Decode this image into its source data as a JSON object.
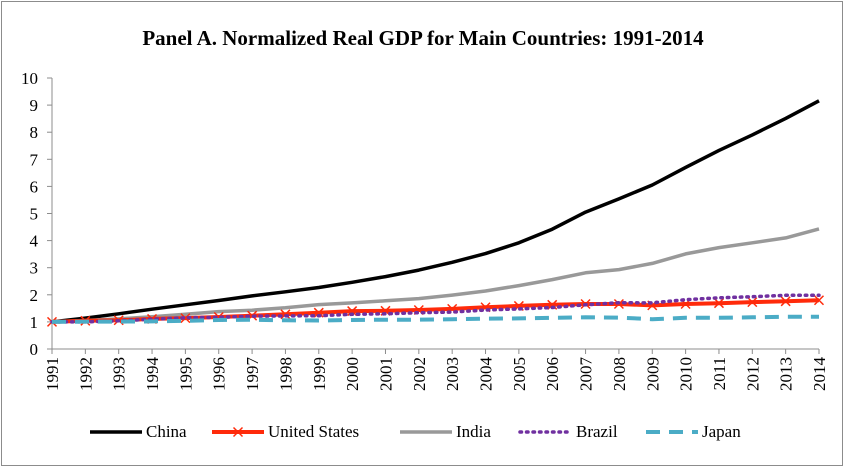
{
  "chart_data": {
    "type": "line",
    "title": "Panel A. Normalized Real GDP for Main Countries: 1991-2014",
    "xlabel": "",
    "ylabel": "",
    "ylim": [
      0,
      10
    ],
    "yticks": [
      "0",
      "1",
      "2",
      "3",
      "4",
      "5",
      "6",
      "7",
      "8",
      "9",
      "10"
    ],
    "grid": false,
    "legend_position": "bottom",
    "x": [
      "1991",
      "1992",
      "1993",
      "1994",
      "1995",
      "1996",
      "1997",
      "1998",
      "1999",
      "2000",
      "2001",
      "2002",
      "2003",
      "2004",
      "2005",
      "2006",
      "2007",
      "2008",
      "2009",
      "2010",
      "2011",
      "2012",
      "2013",
      "2014"
    ],
    "series": [
      {
        "name": "China",
        "color": "#000000",
        "style": "solid",
        "values": [
          1.0,
          1.14,
          1.3,
          1.47,
          1.63,
          1.79,
          1.96,
          2.11,
          2.27,
          2.46,
          2.67,
          2.91,
          3.2,
          3.52,
          3.92,
          4.42,
          5.05,
          5.54,
          6.05,
          6.7,
          7.33,
          7.9,
          8.51,
          9.16
        ]
      },
      {
        "name": "United States",
        "color": "#ff2a0a",
        "style": "solid-x",
        "values": [
          1.0,
          1.04,
          1.06,
          1.11,
          1.14,
          1.18,
          1.23,
          1.28,
          1.34,
          1.4,
          1.41,
          1.44,
          1.48,
          1.54,
          1.59,
          1.63,
          1.66,
          1.66,
          1.61,
          1.66,
          1.69,
          1.73,
          1.76,
          1.8
        ]
      },
      {
        "name": "India",
        "color": "#999999",
        "style": "solid",
        "values": [
          1.0,
          1.05,
          1.11,
          1.19,
          1.28,
          1.38,
          1.43,
          1.52,
          1.64,
          1.7,
          1.78,
          1.86,
          1.99,
          2.14,
          2.34,
          2.56,
          2.81,
          2.93,
          3.16,
          3.51,
          3.74,
          3.92,
          4.1,
          4.43
        ]
      },
      {
        "name": "Brazil",
        "color": "#7030a0",
        "style": "dotted",
        "values": [
          1.0,
          1.0,
          1.04,
          1.1,
          1.15,
          1.17,
          1.21,
          1.22,
          1.23,
          1.28,
          1.3,
          1.34,
          1.36,
          1.44,
          1.48,
          1.53,
          1.63,
          1.71,
          1.7,
          1.82,
          1.89,
          1.93,
          1.98,
          1.98
        ]
      },
      {
        "name": "Japan",
        "color": "#4bacc6",
        "style": "dashed",
        "values": [
          1.0,
          1.01,
          1.01,
          1.02,
          1.04,
          1.07,
          1.08,
          1.06,
          1.05,
          1.07,
          1.08,
          1.08,
          1.1,
          1.12,
          1.13,
          1.15,
          1.17,
          1.16,
          1.1,
          1.15,
          1.15,
          1.17,
          1.19,
          1.19
        ]
      }
    ]
  }
}
